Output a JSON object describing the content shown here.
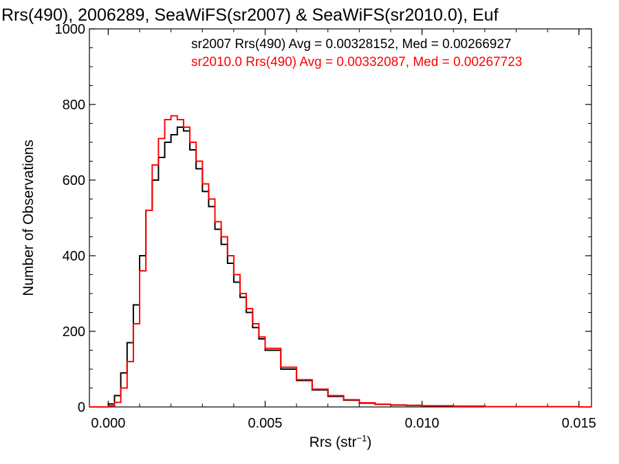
{
  "chart_data": {
    "type": "line",
    "title": "Rrs(490), 2006289, SeaWiFS(sr2007) & SeaWiFS(sr2010.0), Euf",
    "xlabel_main": "Rrs (str",
    "xlabel_sup": "−1",
    "xlabel_tail": ")",
    "ylabel": "Number of Observations",
    "xlim": [
      -0.0006,
      0.0154
    ],
    "ylim": [
      0,
      1000
    ],
    "x_ticks": [
      "0.000",
      "0.005",
      "0.010",
      "0.015"
    ],
    "x_tick_values": [
      0.0,
      0.005,
      0.01,
      0.015
    ],
    "y_ticks": [
      "0",
      "200",
      "400",
      "600",
      "800",
      "1000"
    ],
    "y_tick_values": [
      0,
      200,
      400,
      600,
      800,
      1000
    ],
    "grid": false,
    "legend_placement": "top-right",
    "x": [
      0.0,
      0.0002,
      0.0004,
      0.0006,
      0.0008,
      0.001,
      0.0012,
      0.0014,
      0.0016,
      0.0018,
      0.002,
      0.0022,
      0.0024,
      0.0026,
      0.0028,
      0.003,
      0.0032,
      0.0034,
      0.0036,
      0.0038,
      0.004,
      0.0042,
      0.0044,
      0.0046,
      0.0048,
      0.005,
      0.0055,
      0.006,
      0.0065,
      0.007,
      0.0075,
      0.008,
      0.0085,
      0.009,
      0.0095,
      0.01,
      0.011,
      0.012,
      0.013,
      0.014,
      0.015
    ],
    "series": [
      {
        "name": "sr2007 Rrs(490) Avg = 0.00328152, Med = 0.00266927",
        "color": "#000000",
        "values": [
          8,
          30,
          90,
          170,
          270,
          400,
          520,
          600,
          660,
          700,
          720,
          740,
          730,
          680,
          630,
          570,
          530,
          470,
          430,
          380,
          330,
          290,
          250,
          210,
          180,
          150,
          100,
          70,
          45,
          28,
          18,
          10,
          7,
          5,
          4,
          3,
          2,
          1,
          1,
          1,
          0
        ]
      },
      {
        "name": "sr2010.0 Rrs(490) Avg = 0.00332087, Med = 0.00267723",
        "color": "#ff0000",
        "values": [
          3,
          12,
          50,
          120,
          220,
          360,
          520,
          640,
          710,
          760,
          770,
          760,
          740,
          700,
          650,
          590,
          550,
          490,
          450,
          400,
          350,
          300,
          260,
          220,
          185,
          155,
          105,
          72,
          47,
          30,
          19,
          11,
          7,
          5,
          4,
          3,
          2,
          1,
          1,
          1,
          0
        ]
      }
    ]
  }
}
